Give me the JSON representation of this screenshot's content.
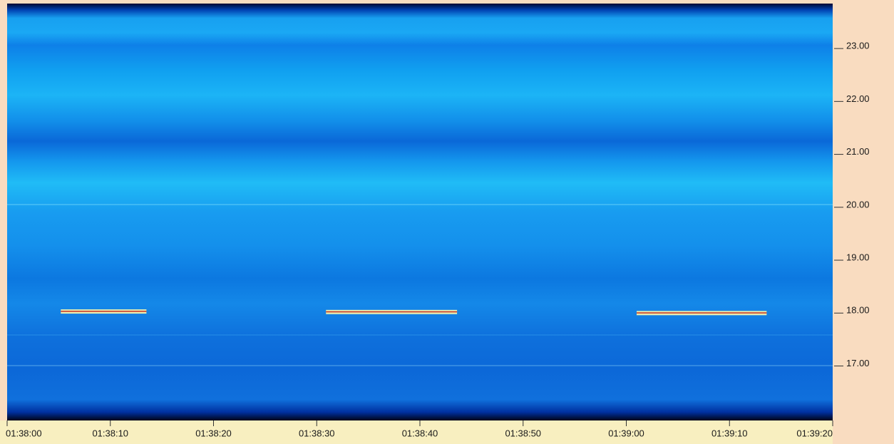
{
  "chart_data": {
    "type": "spectrogram",
    "xlim": [
      0,
      80
    ],
    "xticks": [
      {
        "value": 0,
        "label": "01:38:00"
      },
      {
        "value": 10,
        "label": "01:38:10"
      },
      {
        "value": 20,
        "label": "01:38:20"
      },
      {
        "value": 30,
        "label": "01:38:30"
      },
      {
        "value": 40,
        "label": "01:38:40"
      },
      {
        "value": 50,
        "label": "01:38:50"
      },
      {
        "value": 60,
        "label": "01:39:00"
      },
      {
        "value": 70,
        "label": "01:39:10"
      },
      {
        "value": 80,
        "label": "01:39:20"
      }
    ],
    "ylim": [
      15.97,
      23.85
    ],
    "yticks": [
      {
        "value": 17,
        "label": "17.00"
      },
      {
        "value": 18,
        "label": "18.00"
      },
      {
        "value": 19,
        "label": "19.00"
      },
      {
        "value": 20,
        "label": "20.00"
      },
      {
        "value": 21,
        "label": "21.00"
      },
      {
        "value": 22,
        "label": "22.00"
      },
      {
        "value": 23,
        "label": "23.00"
      }
    ],
    "signals": {
      "color": "#fff6a8",
      "start": [
        5.2,
        30.9,
        61.0
      ],
      "end": [
        13.5,
        43.6,
        73.6
      ],
      "frequency": [
        18.03,
        18.02,
        18.0
      ]
    }
  }
}
